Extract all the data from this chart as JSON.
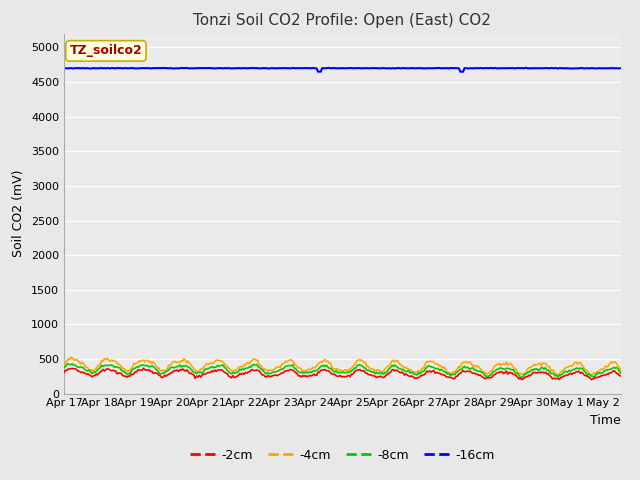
{
  "title": "Tonzi Soil CO2 Profile: Open (East) CO2",
  "ylabel": "Soil CO2 (mV)",
  "xlabel": "Time",
  "annotation": "TZ_soilco2",
  "ylim": [
    0,
    5200
  ],
  "yticks": [
    0,
    500,
    1000,
    1500,
    2000,
    2500,
    3000,
    3500,
    4000,
    4500,
    5000
  ],
  "xtick_labels": [
    "Apr 17",
    "Apr 18",
    "Apr 19",
    "Apr 20",
    "Apr 21",
    "Apr 22",
    "Apr 23",
    "Apr 24",
    "Apr 25",
    "Apr 26",
    "Apr 27",
    "Apr 28",
    "Apr 29",
    "Apr 30",
    "May 1",
    "May 2"
  ],
  "n_points": 400,
  "colors": {
    "minus2cm": "#ff0000",
    "minus4cm": "#ffa500",
    "minus8cm": "#00cc00",
    "minus16cm": "#0000ff"
  },
  "legend_labels": [
    "-2cm",
    "-4cm",
    "-8cm",
    "-16cm"
  ],
  "fig_bg_color": "#e8e8e8",
  "plot_bg_color": "#ebebeb",
  "grid_color": "#ffffff",
  "title_fontsize": 11,
  "axis_fontsize": 9,
  "tick_fontsize": 8,
  "legend_fontsize": 9,
  "annot_fontsize": 9,
  "annot_color": "#aa0000",
  "annot_bg": "#ffffe0",
  "annot_edge": "#ccaa00"
}
